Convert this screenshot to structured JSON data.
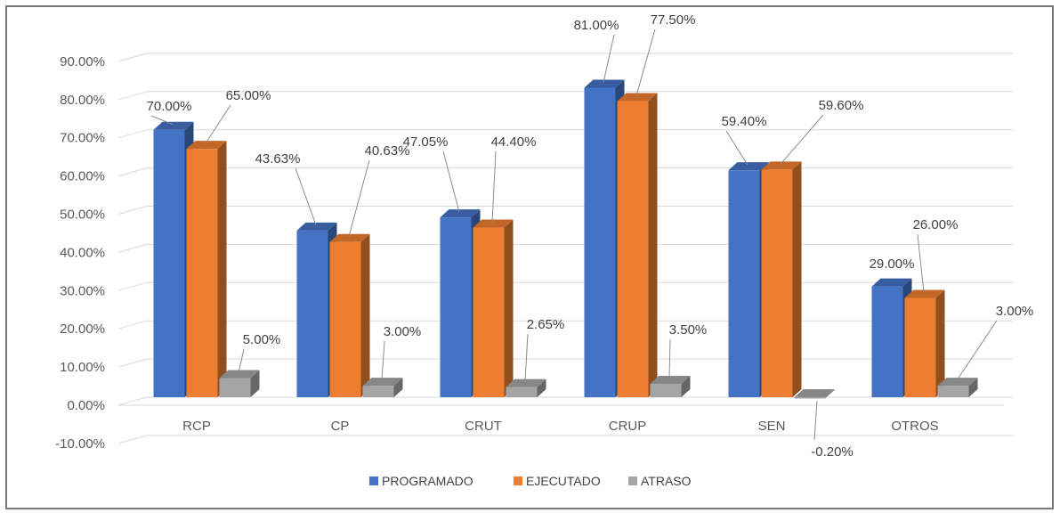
{
  "chart_data": {
    "type": "bar",
    "categories": [
      "RCP",
      "CP",
      "CRUT",
      "CRUP",
      "SEN",
      "OTROS"
    ],
    "series": [
      {
        "name": "PROGRAMADO",
        "color": "#4472c4",
        "values": [
          70.0,
          43.63,
          47.05,
          81.0,
          59.4,
          29.0
        ],
        "labels": [
          "70.00%",
          "43.63%",
          "47.05%",
          "81.00%",
          "59.40%",
          "29.00%"
        ]
      },
      {
        "name": "EJECUTADO",
        "color": "#ed7d31",
        "values": [
          65.0,
          40.63,
          44.4,
          77.5,
          59.6,
          26.0
        ],
        "labels": [
          "65.00%",
          "40.63%",
          "44.40%",
          "77.50%",
          "59.60%",
          "26.00%"
        ]
      },
      {
        "name": "ATRASO",
        "color": "#a5a5a5",
        "values": [
          5.0,
          3.0,
          2.65,
          3.5,
          -0.2,
          3.0
        ],
        "labels": [
          "5.00%",
          "3.00%",
          "2.65%",
          "3.50%",
          "-0.20%",
          "3.00%"
        ]
      }
    ],
    "yticks": [
      "-10.00%",
      "0.00%",
      "10.00%",
      "20.00%",
      "30.00%",
      "40.00%",
      "50.00%",
      "60.00%",
      "70.00%",
      "80.00%",
      "90.00%"
    ],
    "ylim": [
      -10,
      90
    ],
    "grid": true,
    "legend_position": "bottom",
    "style": "3d clustered column"
  }
}
